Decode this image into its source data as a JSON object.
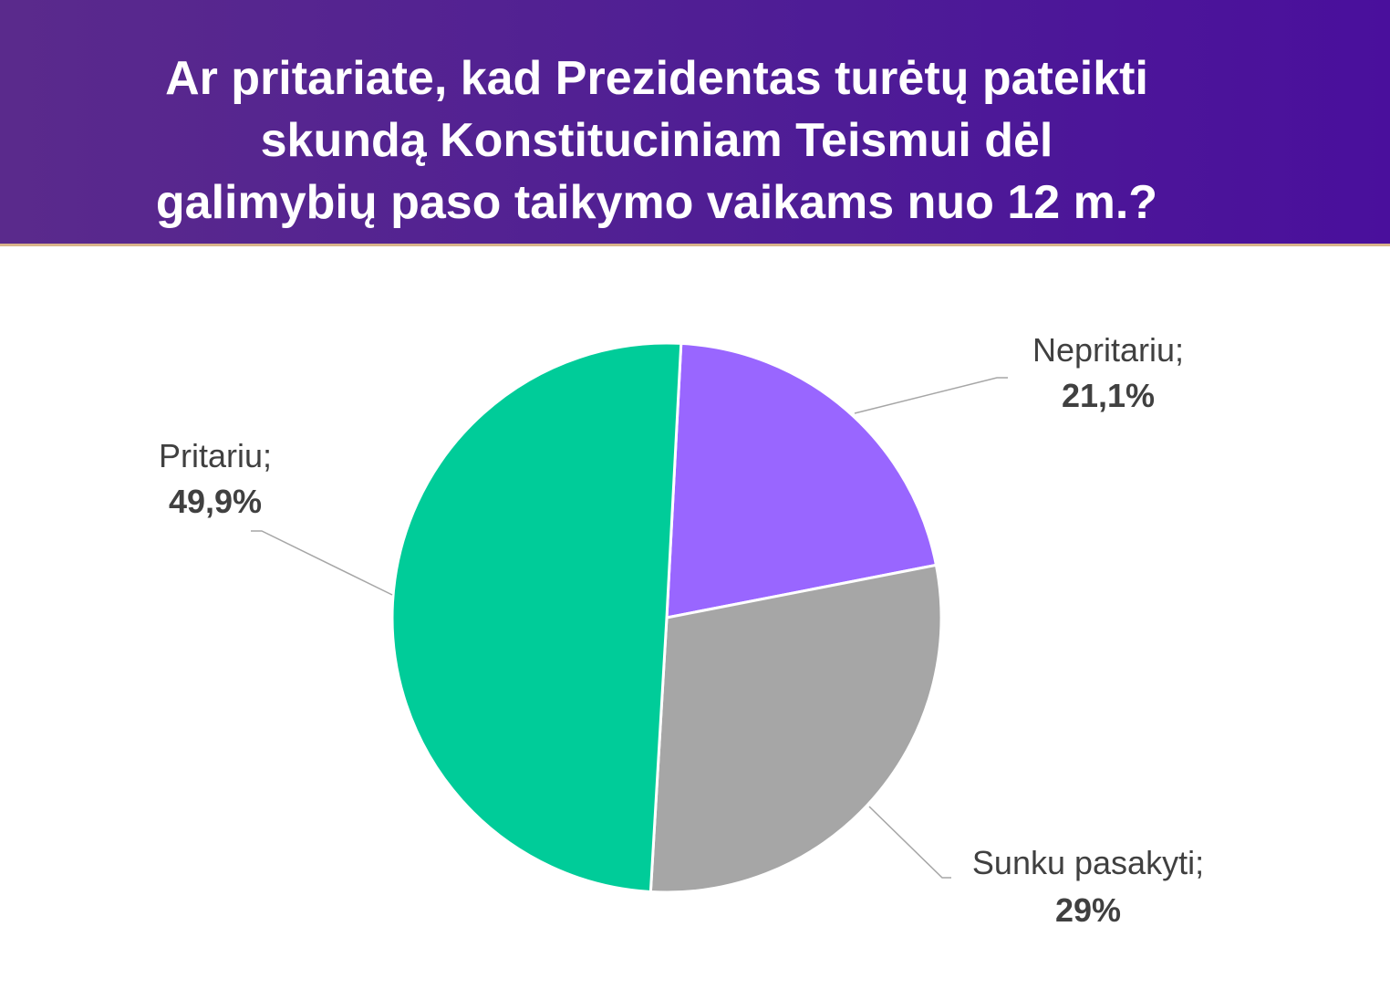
{
  "header": {
    "title_lines": [
      "Ar pritariate, kad Prezidentas turėtų pateikti",
      "skundą Konstituciniam Teismui dėl",
      "galimybių paso taikymo vaikams nuo 12 m.?"
    ],
    "accent_color": "#4e1c96"
  },
  "chart_data": {
    "type": "pie",
    "title": "Ar pritariate, kad Prezidentas turėtų pateikti skundą Konstituciniam Teismui dėl galimybių paso taikymo vaikams nuo 12 m.?",
    "slices": [
      {
        "label": "Nepritariu;",
        "value": 21.1,
        "value_label": "21,1%",
        "color": "#9966ff"
      },
      {
        "label": "Sunku pasakyti;",
        "value": 29,
        "value_label": "29%",
        "color": "#a6a6a6"
      },
      {
        "label": "Pritariu;",
        "value": 49.9,
        "value_label": "49,9%",
        "color": "#00cc99"
      }
    ],
    "start_angle_deg": 3,
    "direction": "clockwise",
    "legend": "none",
    "data_labels": "outside-with-leader-lines"
  }
}
